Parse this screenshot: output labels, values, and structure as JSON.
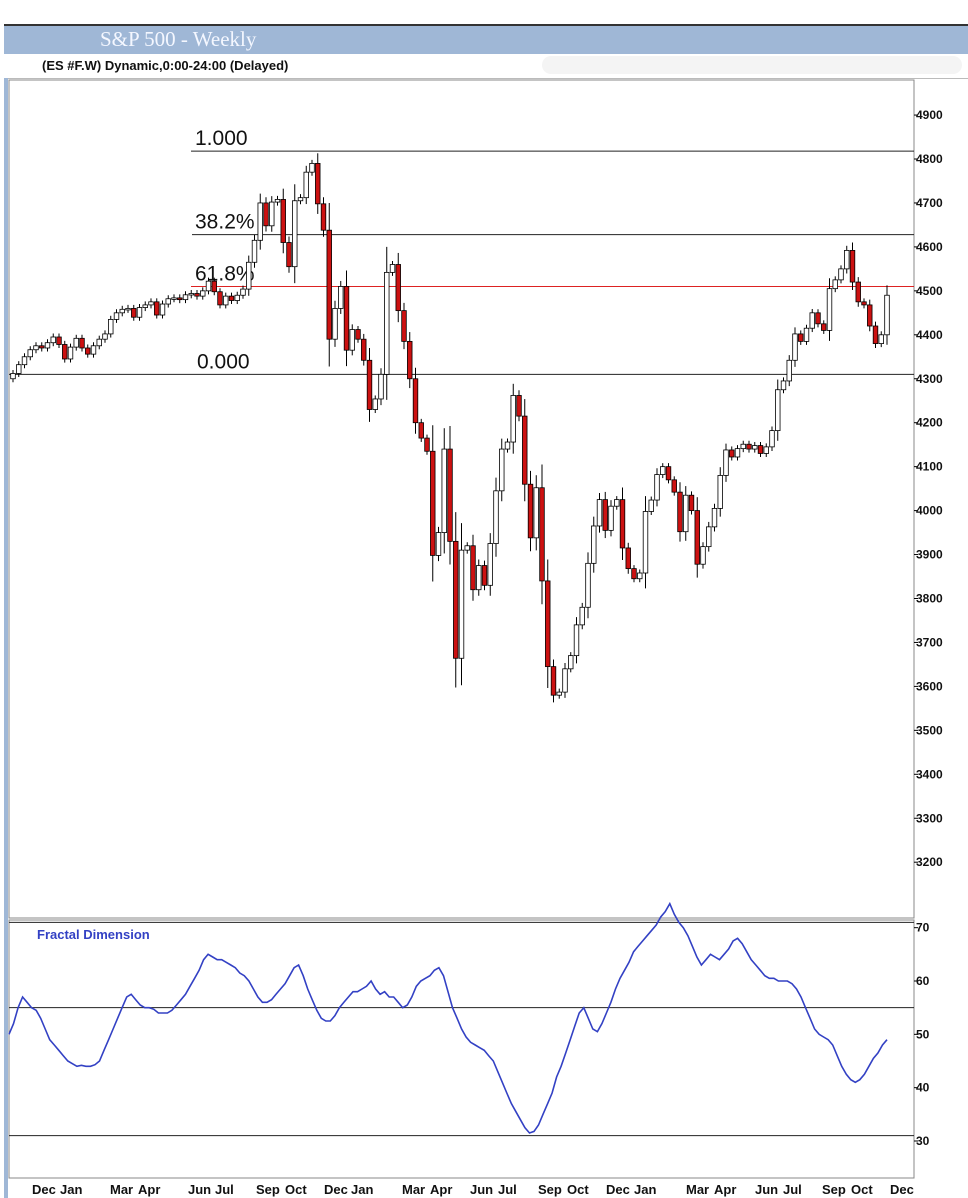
{
  "title": "S&P 500 - Weekly",
  "symbol_line": "(ES #F.W) Dynamic,0:00-24:00 (Delayed)",
  "indicator_name": "Fractal Dimension",
  "fib_labels": [
    "1.000",
    "38.2%",
    "61.8%",
    "0.000"
  ],
  "colors": {
    "up": "#ffffff",
    "down": "#cc1111",
    "wick": "#000000",
    "indicator": "#3341c4",
    "fib_618": "#dd2222",
    "title_bg": "#9fb7d6"
  },
  "chart_data": [
    {
      "type": "candlestick",
      "title": "S&P 500 - Weekly",
      "ylim": [
        3120,
        4960
      ],
      "y_ticks": [
        4900,
        4800,
        4700,
        4600,
        4500,
        4400,
        4300,
        4200,
        4100,
        4000,
        3900,
        3800,
        3700,
        3600,
        3500,
        3400,
        3300,
        3200
      ],
      "x_tick_labels": [
        "Dec",
        "Jan",
        "Mar",
        "Apr",
        "Jun",
        "Jul",
        "Sep",
        "Oct",
        "Dec",
        "Jan",
        "Mar",
        "Apr",
        "Jun",
        "Jul",
        "Sep",
        "Oct",
        "Dec",
        "Jan",
        "Mar",
        "Apr",
        "Jun",
        "Jul",
        "Sep",
        "Oct",
        "Dec"
      ],
      "fib_levels": [
        {
          "label": "1.000",
          "value": 4818
        },
        {
          "label": "38.2%",
          "value": 4628
        },
        {
          "label": "61.8%",
          "value": 4510
        },
        {
          "label": "0.000",
          "value": 4310
        }
      ],
      "close": [
        4312,
        4332,
        4350,
        4366,
        4375,
        4370,
        4382,
        4395,
        4378,
        4345,
        4372,
        4392,
        4370,
        4356,
        4375,
        4390,
        4402,
        4435,
        4450,
        4458,
        4460,
        4440,
        4462,
        4468,
        4475,
        4445,
        4470,
        4482,
        4484,
        4480,
        4491,
        4494,
        4488,
        4500,
        4522,
        4498,
        4468,
        4488,
        4478,
        4490,
        4504,
        4565,
        4615,
        4700,
        4648,
        4702,
        4708,
        4610,
        4555,
        4705,
        4712,
        4770,
        4790,
        4698,
        4638,
        4390,
        4460,
        4510,
        4365,
        4412,
        4390,
        4342,
        4230,
        4254,
        4310,
        4542,
        4560,
        4455,
        4385,
        4300,
        4200,
        4165,
        4135,
        3898,
        3950,
        4140,
        3930,
        3664,
        3910,
        3920,
        3820,
        3875,
        3830,
        3925,
        4045,
        4140,
        4156,
        4262,
        4215,
        4060,
        3938,
        4052,
        3840,
        3645,
        3580,
        3587,
        3640,
        3670,
        3740,
        3780,
        3880,
        3965,
        4025,
        3955,
        4010,
        4025,
        3915,
        3868,
        3845,
        3858,
        3998,
        4024,
        4082,
        4100,
        4070,
        4042,
        3952,
        4035,
        4000,
        3878,
        3918,
        3963,
        4005,
        4080,
        4138,
        4122,
        4141,
        4151,
        4140,
        4148,
        4130,
        4145,
        4182,
        4275,
        4295,
        4342,
        4402,
        4385,
        4415,
        4450,
        4425,
        4410,
        4505,
        4525,
        4550,
        4592,
        4520,
        4475,
        4468,
        4420,
        4380,
        4400,
        4490
      ]
    },
    {
      "type": "line",
      "name": "Fractal Dimension",
      "ylim": [
        25,
        73
      ],
      "y_ticks": [
        70,
        60,
        50,
        40,
        30
      ],
      "reference_lines": [
        71,
        55,
        31
      ],
      "values": [
        50,
        52,
        55,
        57,
        56,
        55,
        54.5,
        53,
        51,
        49,
        48,
        47,
        46,
        45,
        44.5,
        44,
        44.2,
        44,
        44,
        44.3,
        45,
        47,
        49,
        51,
        53,
        55,
        57,
        57.5,
        56.5,
        55.5,
        55,
        55,
        54.7,
        54,
        54,
        54,
        54.5,
        55.5,
        56.5,
        57.5,
        59,
        60.5,
        62,
        64,
        65,
        64.5,
        64,
        64,
        63.5,
        63,
        62.5,
        61.5,
        61,
        60,
        58.5,
        57,
        56,
        56,
        56.5,
        57.5,
        58.5,
        59.5,
        61,
        62.5,
        63,
        61,
        58.5,
        56.5,
        54.5,
        53,
        52.5,
        52.5,
        53.5,
        55,
        56,
        57,
        58,
        58,
        58.5,
        59,
        60,
        58.5,
        57.5,
        58,
        57,
        57,
        56,
        55,
        55.5,
        57,
        59,
        60,
        60.5,
        61,
        62,
        62.5,
        61,
        58,
        55,
        53,
        51,
        49.5,
        48.5,
        48,
        47.5,
        47,
        46,
        45,
        43,
        41,
        39,
        37,
        35.5,
        34,
        32.5,
        31.5,
        31.8,
        33,
        35,
        37,
        39,
        42,
        44,
        46.5,
        49,
        51.5,
        54,
        55,
        53,
        51,
        50.5,
        52,
        54,
        56,
        58.5,
        60.5,
        62,
        63.5,
        65.5,
        66.5,
        67.5,
        68.5,
        69.5,
        70.5,
        72,
        73,
        74.5,
        72.5,
        71,
        70,
        68.5,
        66.5,
        64.5,
        63,
        64,
        65,
        64.5,
        64,
        65,
        66,
        67.5,
        68,
        67,
        65.5,
        64,
        63,
        62,
        61,
        60.5,
        60.5,
        60,
        60,
        60,
        59.5,
        58.5,
        57,
        55,
        53,
        51,
        50,
        49.5,
        49,
        48,
        46,
        44,
        42.5,
        41.5,
        41,
        41.5,
        42.5,
        44,
        45.5,
        46.5,
        48,
        49
      ]
    }
  ]
}
